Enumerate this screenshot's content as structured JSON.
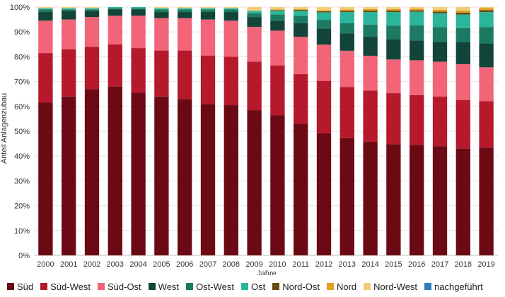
{
  "chart_data": {
    "type": "bar",
    "stacked": true,
    "categories": [
      "2000",
      "2001",
      "2002",
      "2003",
      "2004",
      "2005",
      "2006",
      "2007",
      "2008",
      "2009",
      "2010",
      "2011",
      "2012",
      "2013",
      "2014",
      "2015",
      "2016",
      "2017",
      "2018",
      "2019"
    ],
    "xlabel": "Jahre",
    "ylabel": "Anteil Anlagenzubau",
    "ylim": [
      0,
      100
    ],
    "yticks": [
      "0%",
      "10%",
      "20%",
      "30%",
      "40%",
      "50%",
      "60%",
      "70%",
      "80%",
      "90%",
      "100%"
    ],
    "grid": true,
    "legend_position": "bottom",
    "series": [
      {
        "name": "Süd",
        "color": "#6b0a14",
        "values": [
          61.5,
          64,
          67,
          68,
          65.5,
          64,
          63,
          61,
          60.5,
          58.5,
          56.5,
          53,
          49,
          47,
          45.5,
          44.5,
          44.5,
          44,
          43,
          43
        ]
      },
      {
        "name": "Süd-West",
        "color": "#b5192b",
        "values": [
          20,
          19,
          17,
          17,
          18,
          18.5,
          19.5,
          19.5,
          19.5,
          19.5,
          20,
          20,
          21,
          20.5,
          20.5,
          20.5,
          20,
          20,
          19.5,
          18.5
        ]
      },
      {
        "name": "Süd-Ost",
        "color": "#f26477",
        "values": [
          13,
          12,
          12,
          11.5,
          13,
          13,
          13,
          14.5,
          14.5,
          14,
          14,
          15,
          14.5,
          14.5,
          14,
          13.5,
          14,
          14,
          14.5,
          13.5
        ]
      },
      {
        "name": "West",
        "color": "#12443a",
        "values": [
          3.5,
          3.5,
          2.5,
          2.5,
          2.5,
          2.5,
          2.5,
          3,
          3.5,
          4,
          4,
          5.5,
          6.5,
          7,
          7.5,
          8,
          8,
          8,
          9,
          9.5
        ]
      },
      {
        "name": "Ost-West",
        "color": "#1d7a62",
        "values": [
          1,
          0.5,
          0.5,
          0.5,
          0.5,
          1,
          1,
          1,
          1,
          1.5,
          2.5,
          3,
          3.5,
          4,
          5,
          5.5,
          6,
          6,
          5.5,
          6.5
        ]
      },
      {
        "name": "Ost",
        "color": "#2bb59a",
        "values": [
          0.5,
          0.5,
          0.5,
          0.5,
          0.5,
          0.5,
          0.5,
          0.5,
          0.5,
          1,
          1.5,
          2,
          3,
          4.5,
          5,
          5.5,
          5.5,
          5.5,
          5.5,
          6
        ]
      },
      {
        "name": "Nord-Ost",
        "color": "#6b4a12",
        "values": [
          0,
          0,
          0,
          0,
          0,
          0,
          0,
          0,
          0,
          0,
          0.3,
          0.4,
          0.4,
          0.5,
          0.6,
          0.6,
          0.6,
          0.7,
          0.8,
          0.8
        ]
      },
      {
        "name": "Nord",
        "color": "#e0a020",
        "values": [
          0,
          0,
          0,
          0,
          0,
          0,
          0,
          0,
          0,
          0,
          0.2,
          0.3,
          0.4,
          0.5,
          0.6,
          0.6,
          0.6,
          0.7,
          0.8,
          0.8
        ]
      },
      {
        "name": "Nord-West",
        "color": "#f2cc7a",
        "values": [
          0.5,
          0.5,
          0.5,
          0,
          0,
          0.5,
          0.5,
          0.5,
          0.5,
          1.5,
          1,
          0.8,
          1.3,
          1,
          0.8,
          0.8,
          0.7,
          1.1,
          1.4,
          0.4
        ]
      },
      {
        "name": "nachgeführt",
        "color": "#2c7fb8",
        "values": [
          0,
          0,
          0,
          0,
          0,
          0,
          0,
          0,
          0,
          0,
          0,
          0,
          0,
          0,
          0,
          0,
          0,
          0,
          0,
          0
        ]
      }
    ]
  }
}
